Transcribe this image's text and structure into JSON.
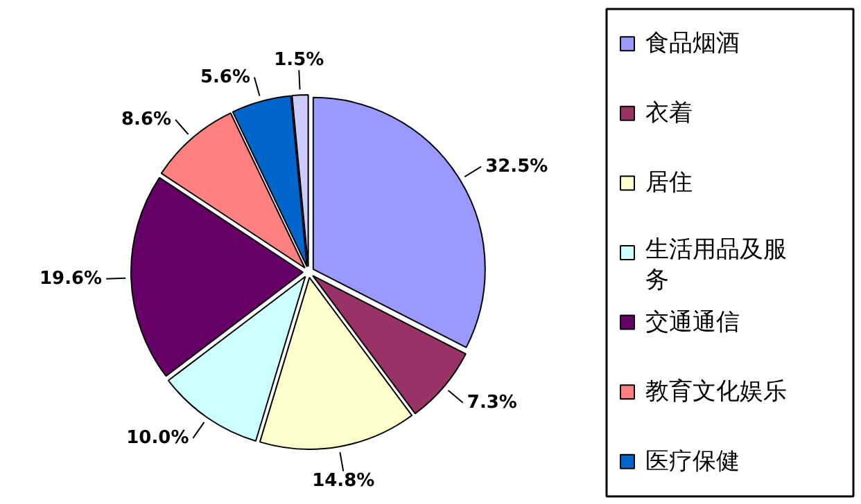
{
  "chart_data": {
    "type": "pie",
    "categories": [
      "食品烟酒",
      "衣着",
      "居住",
      "生活用品及服务",
      "交通通信",
      "教育文化娱乐",
      "医疗保健",
      null
    ],
    "values": [
      32.5,
      7.3,
      14.8,
      10.0,
      19.6,
      8.6,
      5.6,
      1.5
    ],
    "value_labels": [
      "32.5%",
      "7.3%",
      "14.8%",
      "10.0%",
      "19.6%",
      "8.6%",
      "5.6%",
      "1.5%"
    ],
    "colors": [
      "#9999ff",
      "#993366",
      "#ffffcc",
      "#ccffff",
      "#660066",
      "#ff8080",
      "#0066cc",
      "#ccccff"
    ],
    "legend": "right"
  }
}
